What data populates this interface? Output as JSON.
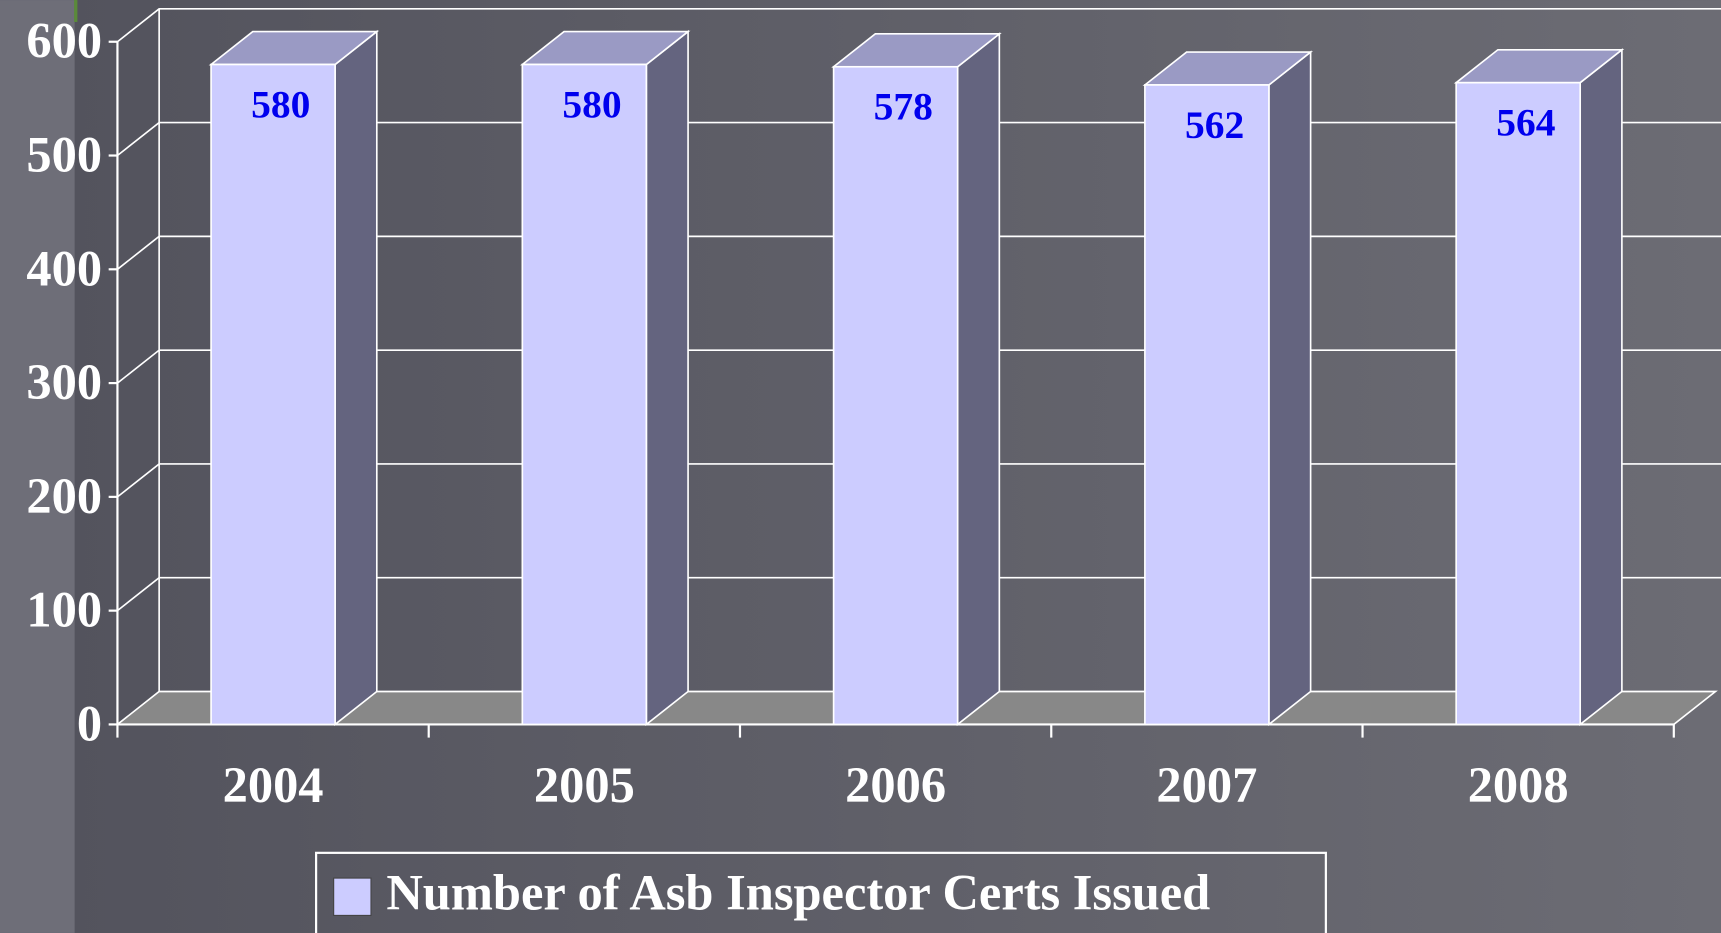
{
  "chart_data": {
    "type": "bar",
    "categories": [
      "2004",
      "2005",
      "2006",
      "2007",
      "2008"
    ],
    "series": [
      {
        "name": "Number of Asb Inspector Certs Issued",
        "color": "#ccccff",
        "values": [
          580,
          580,
          578,
          562,
          564
        ]
      }
    ],
    "ylim": [
      0,
      600
    ],
    "yticks": [
      0,
      100,
      200,
      300,
      400,
      500,
      600
    ],
    "grid": true,
    "legend": "bottom"
  }
}
